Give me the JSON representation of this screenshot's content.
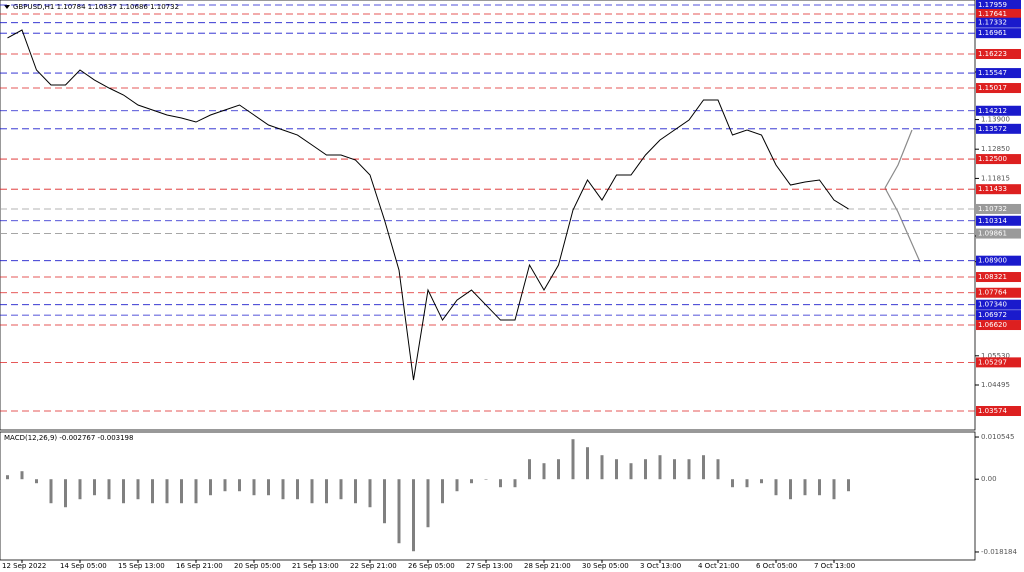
{
  "chart_data": [
    {
      "type": "line",
      "title": "GBPUSD,H1  1.10784 1.10837 1.10686 1.10732",
      "color": "#000000",
      "categories": [
        null,
        "12 Sep 2022",
        null,
        null,
        null,
        "14 Sep 05:00",
        null,
        null,
        null,
        "15 Sep 13:00",
        null,
        null,
        null,
        "16 Sep 21:00",
        null,
        null,
        null,
        "20 Sep 05:00",
        null,
        null,
        null,
        "21 Sep 13:00",
        null,
        null,
        null,
        "22 Sep 21:00",
        null,
        null,
        null,
        "26 Sep 05:00",
        null,
        null,
        null,
        "27 Sep 13:00",
        null,
        null,
        null,
        "28 Sep 21:00",
        null,
        null,
        null,
        "30 Sep 05:00",
        null,
        null,
        null,
        "3 Oct 13:00",
        null,
        null,
        null,
        "4 Oct 21:00",
        null,
        null,
        null,
        "6 Oct 05:00",
        null,
        null,
        null,
        "7 Oct 13:00",
        null
      ],
      "values": [
        1.1679,
        1.17073,
        1.15656,
        1.15124,
        1.15124,
        1.15656,
        1.15301,
        1.15018,
        1.1477,
        1.14415,
        1.14238,
        1.14061,
        1.13955,
        1.13813,
        1.14061,
        1.14238,
        1.14415,
        1.14061,
        1.13707,
        1.1353,
        1.13352,
        1.12998,
        1.12644,
        1.12644,
        1.12466,
        1.11935,
        1.1034,
        1.08568,
        1.04671,
        1.0786,
        1.06797,
        1.07505,
        1.0786,
        1.07328,
        1.06797,
        1.06797,
        1.08746,
        1.0786,
        1.08746,
        1.10695,
        1.11758,
        1.11049,
        1.11935,
        1.11935,
        1.12644,
        1.13175,
        1.1353,
        1.13884,
        1.14593,
        1.14593,
        1.13352,
        1.1353,
        1.13352,
        1.12289,
        1.11581,
        1.11687,
        1.11758,
        1.11049,
        1.10732
      ],
      "ylim": [
        1.02901,
        1.18136
      ],
      "yticks": [
        1.15585,
        {
          "value": 1.139,
          "label": "1.13900"
        },
        {
          "value": 1.1285,
          "label": "1.12850"
        },
        1.11815,
        1.09775,
        1.08865,
        {
          "value": 1.0553,
          "label": "1.05530"
        },
        1.04495
      ],
      "levels": [
        {
          "value": 1.17959,
          "color": "#1a1acc"
        },
        {
          "value": 1.17641,
          "color": "#dd2020"
        },
        {
          "value": 1.17332,
          "color": "#1a1acc"
        },
        {
          "value": 1.16961,
          "color": "#1a1acc"
        },
        {
          "value": 1.16223,
          "color": "#dd2020"
        },
        {
          "value": 1.15547,
          "color": "#1a1acc"
        },
        {
          "value": 1.15017,
          "color": "#dd2020"
        },
        {
          "value": 1.14212,
          "color": "#1a1acc"
        },
        {
          "value": 1.13572,
          "color": "#1a1acc"
        },
        {
          "value": 1.125,
          "label": "1.12500",
          "color": "#dd2020"
        },
        {
          "value": 1.11433,
          "color": "#dd2020"
        },
        {
          "value": 1.10732,
          "color": "#9a9a9a"
        },
        {
          "value": 1.10314,
          "color": "#1a1acc"
        },
        {
          "value": 1.09861,
          "color": "#9a9a9a"
        },
        {
          "value": 1.089,
          "label": "1.08900",
          "color": "#1a1acc"
        },
        {
          "value": 1.08321,
          "color": "#dd2020"
        },
        {
          "value": 1.07764,
          "color": "#dd2020"
        },
        {
          "value": 1.0734,
          "label": "1.07340",
          "color": "#1a1acc"
        },
        {
          "value": 1.06972,
          "color": "#1a1acc"
        },
        {
          "value": 1.0662,
          "label": "1.06620",
          "color": "#dd2020"
        },
        {
          "value": 1.05297,
          "color": "#dd2020"
        },
        {
          "value": 1.03574,
          "color": "#dd2020"
        }
      ]
    },
    {
      "type": "bar",
      "title": "MACD(12,26,9) -0.002767 -0.003198",
      "color": "#808080",
      "values": [
        0.001,
        0.002,
        -0.001,
        -0.006,
        -0.007,
        -0.005,
        -0.004,
        -0.005,
        -0.006,
        -0.005,
        -0.006,
        -0.006,
        -0.006,
        -0.006,
        -0.004,
        -0.003,
        -0.003,
        -0.004,
        -0.004,
        -0.005,
        -0.005,
        -0.006,
        -0.006,
        -0.005,
        -0.006,
        -0.007,
        -0.011,
        -0.016,
        -0.018,
        -0.012,
        -0.006,
        -0.003,
        -0.001,
        0.0,
        -0.002,
        -0.002,
        0.005,
        0.004,
        0.005,
        0.01,
        0.008,
        0.006,
        0.005,
        0.004,
        0.005,
        0.006,
        0.005,
        0.005,
        0.006,
        0.005,
        -0.002,
        -0.002,
        -0.001,
        -0.004,
        -0.005,
        -0.004,
        -0.004,
        -0.005,
        -0.003
      ],
      "ylim": [
        -0.02019,
        0.0118
      ],
      "yticks": [
        0.010545,
        {
          "value": 0,
          "label": "0.00"
        },
        -0.018184
      ]
    }
  ]
}
